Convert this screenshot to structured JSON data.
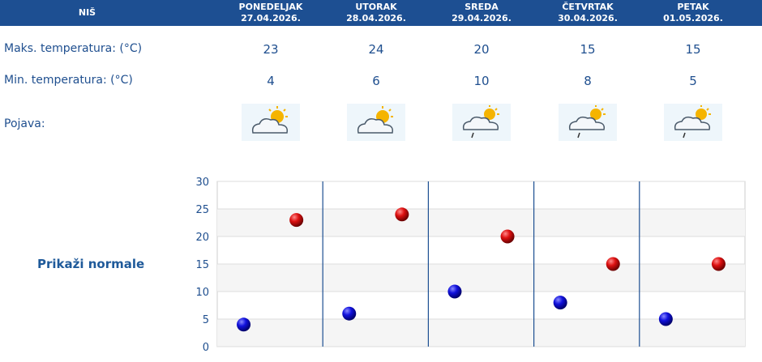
{
  "header": {
    "city": "NIŠ",
    "days": [
      {
        "name": "PONEDELJAK",
        "date": "27.04.2026."
      },
      {
        "name": "UTORAK",
        "date": "28.04.2026."
      },
      {
        "name": "SREDA",
        "date": "29.04.2026."
      },
      {
        "name": "ČETVRTAK",
        "date": "30.04.2026."
      },
      {
        "name": "PETAK",
        "date": "01.05.2026."
      }
    ]
  },
  "rows": {
    "max_label": "Maks. temperatura: (°C)",
    "min_label": "Min. temperatura: (°C)",
    "phen_label": "Pojava:"
  },
  "icons": [
    "partly-cloudy-icon",
    "partly-cloudy-icon",
    "partly-cloudy-rain-icon",
    "partly-cloudy-rain-icon",
    "partly-cloudy-rain-icon"
  ],
  "normals_link": "Prikaži normale",
  "colors": {
    "header": "#1d4f92",
    "max_marker": "#cc0000",
    "min_marker": "#0000cc"
  },
  "chart_data": {
    "type": "scatter",
    "categories": [
      "PONEDELJAK",
      "UTORAK",
      "SREDA",
      "ČETVRTAK",
      "PETAK"
    ],
    "series": [
      {
        "values": [
          23,
          24,
          20,
          15,
          15
        ]
      },
      {
        "values": [
          4,
          6,
          10,
          8,
          5
        ]
      }
    ],
    "y_ticks": [
      "0",
      "5",
      "10",
      "15",
      "20",
      "25",
      "30"
    ],
    "ylim": [
      0,
      30
    ],
    "grid": true
  }
}
